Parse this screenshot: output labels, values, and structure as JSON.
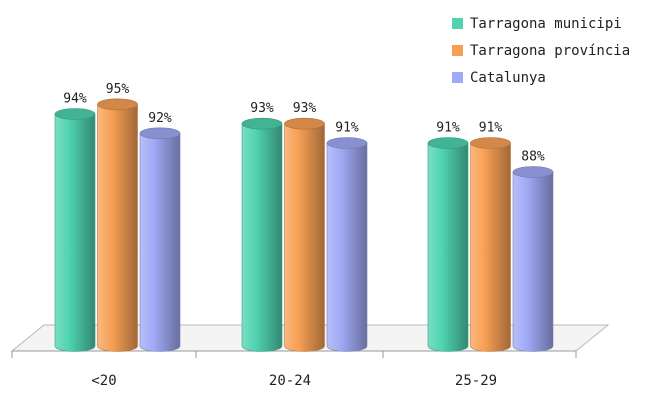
{
  "chart_data": {
    "type": "bar",
    "categories": [
      "<20",
      "20-24",
      "25-29"
    ],
    "series": [
      {
        "name": "Tarragona municipi",
        "values": [
          94,
          93,
          91
        ],
        "labels": [
          "94%",
          "93%",
          "91%"
        ],
        "color": "#4fd3b0"
      },
      {
        "name": "Tarragona província",
        "values": [
          95,
          93,
          91
        ],
        "labels": [
          "95%",
          "93%",
          "91%"
        ],
        "color": "#f7a055"
      },
      {
        "name": "Catalunya",
        "values": [
          92,
          91,
          88
        ],
        "labels": [
          "92%",
          "91%",
          "88%"
        ],
        "color": "#a0a9f5"
      }
    ],
    "ylim": [
      70,
      100
    ],
    "grid": false,
    "legend_position": "top-right",
    "bar_style": "3d-cylinder"
  }
}
